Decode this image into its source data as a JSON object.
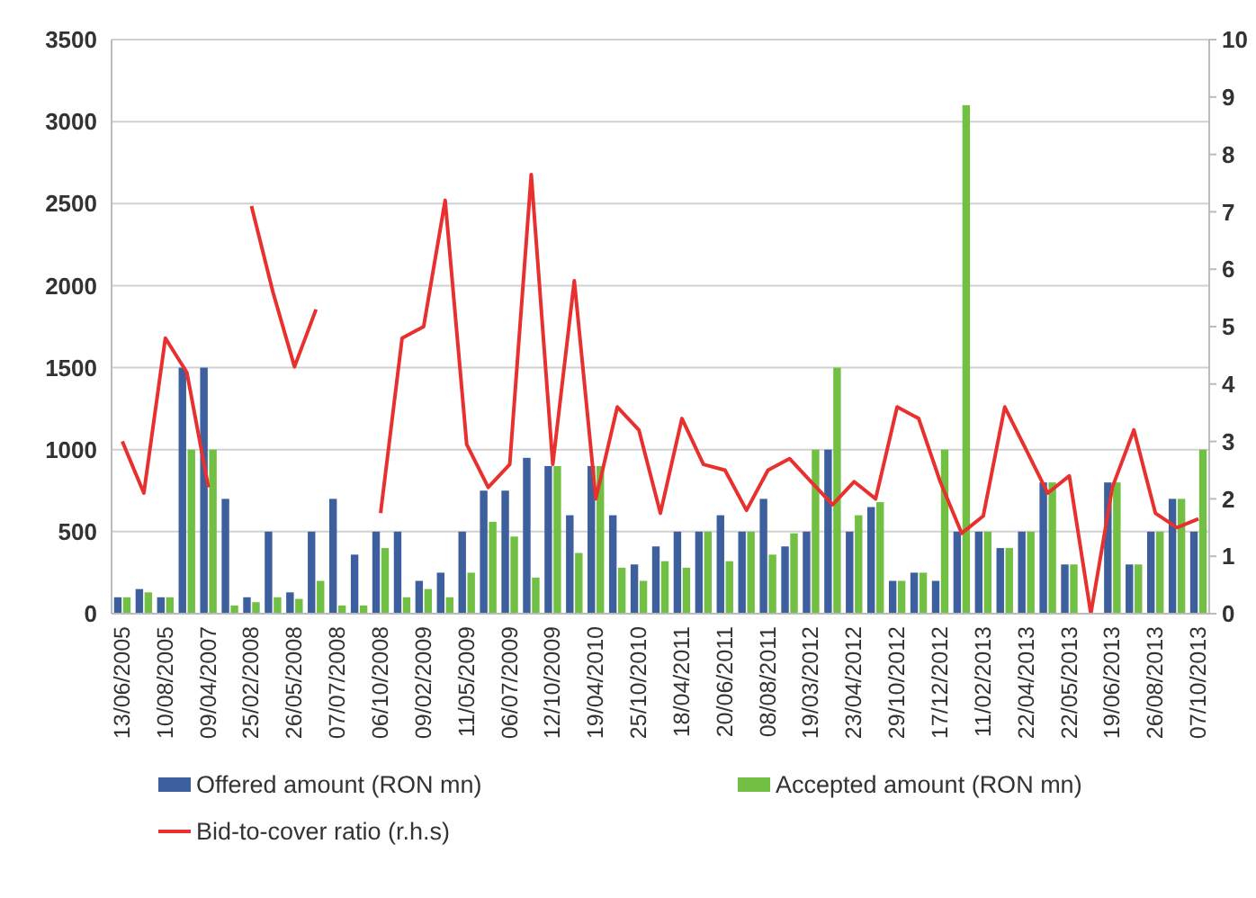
{
  "chart_data": {
    "type": "bar",
    "categories": [
      "13/06/2005",
      null,
      "10/08/2005",
      null,
      "09/04/2007",
      null,
      "25/02/2008",
      null,
      "26/05/2008",
      null,
      "07/07/2008",
      null,
      "06/10/2008",
      null,
      "09/02/2009",
      null,
      "11/05/2009",
      null,
      "06/07/2009",
      null,
      "12/10/2009",
      null,
      "19/04/2010",
      null,
      "25/10/2010",
      null,
      "18/04/2011",
      null,
      "20/06/2011",
      null,
      "08/08/2011",
      null,
      "19/03/2012",
      null,
      "23/04/2012",
      null,
      "29/10/2012",
      null,
      "17/12/2012",
      null,
      "11/02/2013",
      null,
      "22/04/2013",
      null,
      "22/05/2013",
      null,
      "19/06/2013",
      null,
      "26/08/2013",
      null,
      "07/10/2013"
    ],
    "series": [
      {
        "name": "Offered amount (RON mn)",
        "color": "#3d5f9e",
        "values": [
          100,
          150,
          100,
          1500,
          1500,
          700,
          100,
          500,
          130,
          500,
          700,
          360,
          500,
          500,
          200,
          250,
          500,
          750,
          750,
          950,
          900,
          600,
          900,
          600,
          300,
          410,
          500,
          500,
          600,
          500,
          700,
          410,
          500,
          1000,
          500,
          650,
          200,
          250,
          200,
          500,
          500,
          400,
          500,
          800,
          300,
          null,
          800,
          300,
          500,
          700,
          500
        ]
      },
      {
        "name": "Accepted amount (RON mn)",
        "color": "#72c043",
        "values": [
          100,
          130,
          100,
          1000,
          1000,
          50,
          70,
          100,
          90,
          200,
          50,
          50,
          400,
          100,
          150,
          100,
          250,
          560,
          470,
          220,
          900,
          370,
          900,
          280,
          200,
          320,
          280,
          500,
          320,
          500,
          360,
          490,
          1000,
          1500,
          600,
          680,
          200,
          250,
          1000,
          3100,
          500,
          400,
          500,
          800,
          300,
          null,
          800,
          300,
          500,
          700,
          1000
        ]
      },
      {
        "name": "Bid-to-cover ratio (r.h.s)",
        "type": "line",
        "axis": "y2",
        "color": "#e8312f",
        "values": [
          3.0,
          2.1,
          4.8,
          4.2,
          2.2,
          null,
          7.1,
          5.6,
          4.3,
          5.3,
          null,
          null,
          1.75,
          4.8,
          5.0,
          7.2,
          2.95,
          2.2,
          2.6,
          7.65,
          2.6,
          5.8,
          2.0,
          3.6,
          3.2,
          1.75,
          3.4,
          2.6,
          2.5,
          1.8,
          2.5,
          2.7,
          2.3,
          1.9,
          2.3,
          2.0,
          3.6,
          3.4,
          2.3,
          1.4,
          1.7,
          3.6,
          2.85,
          2.1,
          2.4,
          0,
          2.2,
          3.2,
          1.75,
          1.5,
          1.65
        ]
      }
    ],
    "ylim": [
      0,
      3500
    ],
    "yticks": [
      0,
      500,
      1000,
      1500,
      2000,
      2500,
      3000,
      3500
    ],
    "y2lim": [
      0,
      10
    ],
    "y2ticks": [
      0,
      1,
      2,
      3,
      4,
      5,
      6,
      7,
      8,
      9,
      10
    ],
    "grid": "y",
    "legend": "bottom"
  }
}
